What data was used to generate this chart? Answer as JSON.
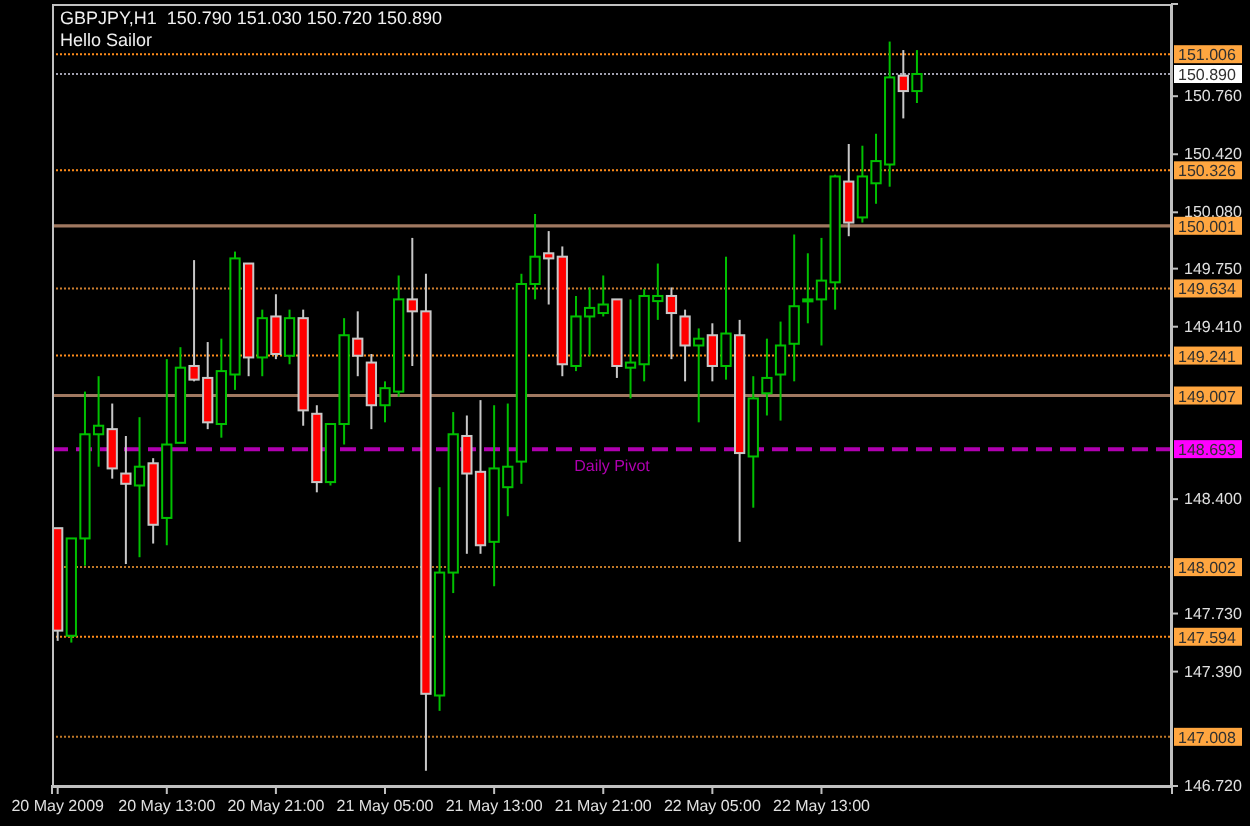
{
  "chart_data": {
    "type": "candlestick",
    "title": "GBPJPY,H1  150.790 151.030 150.720 150.890",
    "subtitle": "Hello Sailor",
    "x": [
      "2009-05-20T05:00",
      "2009-05-20T06:00",
      "2009-05-20T07:00",
      "2009-05-20T08:00",
      "2009-05-20T09:00",
      "2009-05-20T10:00",
      "2009-05-20T11:00",
      "2009-05-20T12:00",
      "2009-05-20T13:00",
      "2009-05-20T14:00",
      "2009-05-20T15:00",
      "2009-05-20T16:00",
      "2009-05-20T17:00",
      "2009-05-20T18:00",
      "2009-05-20T19:00",
      "2009-05-20T20:00",
      "2009-05-20T21:00",
      "2009-05-20T22:00",
      "2009-05-20T23:00",
      "2009-05-21T00:00",
      "2009-05-21T01:00",
      "2009-05-21T02:00",
      "2009-05-21T03:00",
      "2009-05-21T04:00",
      "2009-05-21T05:00",
      "2009-05-21T06:00",
      "2009-05-21T07:00",
      "2009-05-21T08:00",
      "2009-05-21T09:00",
      "2009-05-21T10:00",
      "2009-05-21T11:00",
      "2009-05-21T12:00",
      "2009-05-21T13:00",
      "2009-05-21T14:00",
      "2009-05-21T15:00",
      "2009-05-21T16:00",
      "2009-05-21T17:00",
      "2009-05-21T18:00",
      "2009-05-21T19:00",
      "2009-05-21T20:00",
      "2009-05-21T21:00",
      "2009-05-21T22:00",
      "2009-05-21T23:00",
      "2009-05-22T00:00",
      "2009-05-22T01:00",
      "2009-05-22T02:00",
      "2009-05-22T03:00",
      "2009-05-22T04:00",
      "2009-05-22T05:00",
      "2009-05-22T06:00",
      "2009-05-22T07:00",
      "2009-05-22T08:00",
      "2009-05-22T09:00",
      "2009-05-22T10:00",
      "2009-05-22T11:00",
      "2009-05-22T12:00",
      "2009-05-22T13:00",
      "2009-05-22T14:00",
      "2009-05-22T15:00",
      "2009-05-22T16:00",
      "2009-05-22T17:00",
      "2009-05-22T18:00",
      "2009-05-22T19:00",
      "2009-05-22T20:00"
    ],
    "ohlc": [
      [
        148.23,
        148.23,
        147.57,
        147.63
      ],
      [
        147.6,
        148.17,
        147.56,
        148.17
      ],
      [
        148.17,
        149.03,
        148.01,
        148.78
      ],
      [
        148.78,
        149.12,
        148.59,
        148.83
      ],
      [
        148.81,
        148.96,
        148.52,
        148.58
      ],
      [
        148.55,
        148.77,
        148.02,
        148.49
      ],
      [
        148.48,
        148.88,
        148.06,
        148.59
      ],
      [
        148.61,
        148.64,
        148.14,
        148.25
      ],
      [
        148.29,
        149.22,
        148.13,
        148.72
      ],
      [
        148.73,
        149.29,
        148.73,
        149.17
      ],
      [
        149.18,
        149.8,
        149.09,
        149.1
      ],
      [
        149.11,
        149.32,
        148.81,
        148.85
      ],
      [
        148.84,
        149.34,
        148.76,
        149.15
      ],
      [
        149.13,
        149.85,
        149.04,
        149.81
      ],
      [
        149.78,
        149.78,
        149.12,
        149.23
      ],
      [
        149.23,
        149.51,
        149.12,
        149.46
      ],
      [
        149.47,
        149.6,
        149.22,
        149.25
      ],
      [
        149.24,
        149.51,
        149.19,
        149.46
      ],
      [
        149.46,
        149.51,
        148.83,
        148.92
      ],
      [
        148.9,
        148.95,
        148.44,
        148.5
      ],
      [
        148.5,
        148.84,
        148.48,
        148.84
      ],
      [
        148.84,
        149.46,
        148.72,
        149.36
      ],
      [
        149.34,
        149.5,
        149.12,
        149.24
      ],
      [
        149.2,
        149.25,
        148.81,
        148.95
      ],
      [
        148.95,
        149.09,
        148.85,
        149.05
      ],
      [
        149.03,
        149.71,
        149.0,
        149.57
      ],
      [
        149.57,
        149.93,
        149.18,
        149.5
      ],
      [
        149.5,
        149.72,
        146.81,
        147.26
      ],
      [
        147.25,
        148.47,
        147.16,
        147.97
      ],
      [
        147.97,
        148.91,
        147.85,
        148.78
      ],
      [
        148.77,
        148.89,
        148.08,
        148.55
      ],
      [
        148.56,
        148.98,
        148.08,
        148.13
      ],
      [
        148.15,
        148.95,
        147.89,
        148.58
      ],
      [
        148.47,
        148.96,
        148.3,
        148.59
      ],
      [
        148.62,
        149.72,
        148.49,
        149.66
      ],
      [
        149.66,
        150.07,
        149.57,
        149.82
      ],
      [
        149.84,
        149.97,
        149.54,
        149.81
      ],
      [
        149.82,
        149.88,
        149.12,
        149.19
      ],
      [
        149.18,
        149.59,
        149.15,
        149.47
      ],
      [
        149.47,
        149.64,
        149.24,
        149.52
      ],
      [
        149.49,
        149.71,
        149.47,
        149.54
      ],
      [
        149.57,
        149.57,
        149.11,
        149.18
      ],
      [
        149.17,
        149.57,
        148.99,
        149.2
      ],
      [
        149.19,
        149.63,
        149.09,
        149.59
      ],
      [
        149.56,
        149.78,
        149.45,
        149.59
      ],
      [
        149.59,
        149.64,
        149.22,
        149.49
      ],
      [
        149.47,
        149.51,
        149.09,
        149.3
      ],
      [
        149.3,
        149.4,
        148.85,
        149.34
      ],
      [
        149.36,
        149.43,
        149.09,
        149.18
      ],
      [
        149.18,
        149.82,
        149.1,
        149.37
      ],
      [
        149.36,
        149.45,
        148.15,
        148.67
      ],
      [
        148.65,
        149.12,
        148.35,
        148.99
      ],
      [
        149.02,
        149.34,
        148.89,
        149.11
      ],
      [
        149.13,
        149.44,
        148.86,
        149.3
      ],
      [
        149.31,
        149.95,
        149.09,
        149.53
      ],
      [
        149.56,
        149.84,
        149.43,
        149.57
      ],
      [
        149.57,
        149.93,
        149.3,
        149.68
      ],
      [
        149.67,
        150.3,
        149.51,
        150.29
      ],
      [
        150.26,
        150.48,
        149.94,
        150.02
      ],
      [
        150.05,
        150.47,
        150.02,
        150.29
      ],
      [
        150.25,
        150.54,
        150.13,
        150.38
      ],
      [
        150.36,
        151.08,
        150.23,
        150.87
      ],
      [
        150.88,
        151.03,
        150.63,
        150.79
      ],
      [
        150.79,
        151.03,
        150.72,
        150.89
      ]
    ],
    "colors": [
      "#ff0000",
      "#00c000",
      "#00c000",
      "#00c000",
      "#ff0000",
      "#ff0000",
      "#00c000",
      "#ff0000",
      "#00c000",
      "#00c000",
      "#ff0000",
      "#ff0000",
      "#00c000",
      "#00c000",
      "#ff0000",
      "#00c000",
      "#ff0000",
      "#00c000",
      "#ff0000",
      "#ff0000",
      "#00c000",
      "#00c000",
      "#ff0000",
      "#ff0000",
      "#00c000",
      "#00c000",
      "#ff0000",
      "#ff0000",
      "#00c000",
      "#00c000",
      "#ff0000",
      "#ff0000",
      "#00c000",
      "#00c000",
      "#00c000",
      "#00c000",
      "#ff0000",
      "#ff0000",
      "#00c000",
      "#00c000",
      "#00c000",
      "#ff0000",
      "#00c000",
      "#00c000",
      "#00c000",
      "#ff0000",
      "#ff0000",
      "#00c000",
      "#ff0000",
      "#00c000",
      "#ff0000",
      "#00c000",
      "#00c000",
      "#00c000",
      "#00c000",
      "#00c000",
      "#00c000",
      "#00c000",
      "#ff0000",
      "#00c000",
      "#00c000",
      "#00c000",
      "#ff0000",
      "#00c000"
    ],
    "xlim": [
      "2009-05-20T04:35",
      "2009-05-23T14:42"
    ],
    "xticks": [
      {
        "value": "2009-05-20T05:00",
        "label": "20 May 2009"
      },
      {
        "value": "2009-05-20T13:00",
        "label": "20 May 13:00"
      },
      {
        "value": "2009-05-20T21:00",
        "label": "20 May 21:00"
      },
      {
        "value": "2009-05-21T05:00",
        "label": "21 May 05:00"
      },
      {
        "value": "2009-05-21T13:00",
        "label": "21 May 13:00"
      },
      {
        "value": "2009-05-21T21:00",
        "label": "21 May 21:00"
      },
      {
        "value": "2009-05-22T05:00",
        "label": "22 May 05:00"
      },
      {
        "value": "2009-05-22T13:00",
        "label": "22 May 13:00"
      }
    ],
    "ylim": [
      146.72,
      151.3
    ],
    "yticks": [
      {
        "value": 150.76,
        "label": "150.760"
      },
      {
        "value": 150.42,
        "label": "150.420"
      },
      {
        "value": 150.08,
        "label": "150.080"
      },
      {
        "value": 149.75,
        "label": "149.750"
      },
      {
        "value": 149.41,
        "label": "149.410"
      },
      {
        "value": 148.4,
        "label": "148.400"
      },
      {
        "value": 147.73,
        "label": "147.730"
      },
      {
        "value": 147.39,
        "label": "147.390"
      },
      {
        "value": 146.72,
        "label": "146.720"
      }
    ],
    "annotations": [
      {
        "text": "Daily Pivot",
        "y": 148.693
      }
    ],
    "ref_lines": [
      {
        "axis": "y",
        "value": 151.006,
        "label": "151.006",
        "color": "#ff8c1a",
        "line_style": "dotted"
      },
      {
        "axis": "y",
        "value": 150.89,
        "label": "150.890",
        "color": "#a0a0b0",
        "line_style": "dotted"
      },
      {
        "axis": "y",
        "value": 150.326,
        "label": "150.326",
        "color": "#ff8c1a",
        "line_style": "dotted"
      },
      {
        "axis": "y",
        "value": 150.001,
        "label": "150.001",
        "color": "#a07860",
        "line_style": "solid"
      },
      {
        "axis": "y",
        "value": 149.634,
        "label": "149.634",
        "color": "#d08030",
        "line_style": "dotted"
      },
      {
        "axis": "y",
        "value": 149.241,
        "label": "149.241",
        "color": "#ff8c1a",
        "line_style": "dotted"
      },
      {
        "axis": "y",
        "value": 149.007,
        "label": "149.007",
        "color": "#a07860",
        "line_style": "solid"
      },
      {
        "axis": "y",
        "value": 148.693,
        "label": "148.693",
        "color": "#b000b0",
        "line_style": "dashed"
      },
      {
        "axis": "y",
        "value": 148.002,
        "label": "148.002",
        "color": "#c07828",
        "line_style": "dotted"
      },
      {
        "axis": "y",
        "value": 147.594,
        "label": "147.594",
        "color": "#ff8c1a",
        "line_style": "dotted"
      },
      {
        "axis": "y",
        "value": 147.008,
        "label": "147.008",
        "color": "#c07828",
        "line_style": "dotted"
      }
    ]
  }
}
